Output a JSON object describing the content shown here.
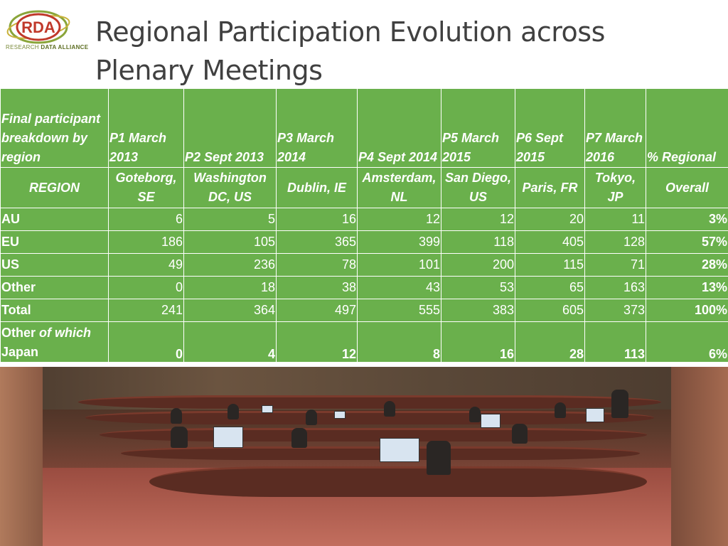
{
  "logo": {
    "mark": "RDA",
    "tagline_a": "RESEARCH ",
    "tagline_b": "DATA ALLIANCE"
  },
  "title_line1": "Regional Participation Evolution across",
  "title_line2": "Plenary Meetings",
  "colors": {
    "table_bg": "#6ab04c",
    "title": "#404040",
    "logo_green": "#7a8a3a",
    "logo_red": "#c0392b"
  },
  "table": {
    "header": {
      "corner": "Final participant breakdown by region",
      "meetings": [
        "P1 March 2013",
        "P2 Sept 2013",
        "P3 March 2014",
        "P4 Sept 2014",
        "P5 March 2015",
        "P6 Sept 2015",
        "P7 March 2016"
      ],
      "overall": "% Regional"
    },
    "subheader": {
      "corner": "REGION",
      "locations": [
        "Goteborg, SE",
        "Washington DC, US",
        "Dublin, IE",
        "Amsterdam, NL",
        "San Diego, US",
        "Paris, FR",
        "Tokyo, JP"
      ],
      "overall": "Overall"
    },
    "rows": [
      {
        "region": "AU",
        "values": [
          "6",
          "5",
          "16",
          "12",
          "12",
          "20",
          "11"
        ],
        "pct": "3%"
      },
      {
        "region": "EU",
        "values": [
          "186",
          "105",
          "365",
          "399",
          "118",
          "405",
          "128"
        ],
        "pct": "57%"
      },
      {
        "region": "US",
        "values": [
          "49",
          "236",
          "78",
          "101",
          "200",
          "115",
          "71"
        ],
        "pct": "28%"
      },
      {
        "region": "Other",
        "values": [
          "0",
          "18",
          "38",
          "43",
          "53",
          "65",
          "163"
        ],
        "pct": "13%"
      },
      {
        "region": "Total",
        "values": [
          "241",
          "364",
          "497",
          "555",
          "383",
          "605",
          "373"
        ],
        "pct": "100%"
      }
    ],
    "last_row": {
      "region_a": "Other ",
      "region_b": "of which",
      "region_c": "Japan",
      "values": [
        "0",
        "4",
        "12",
        "8",
        "16",
        "28",
        "113"
      ],
      "pct": "6%"
    }
  }
}
